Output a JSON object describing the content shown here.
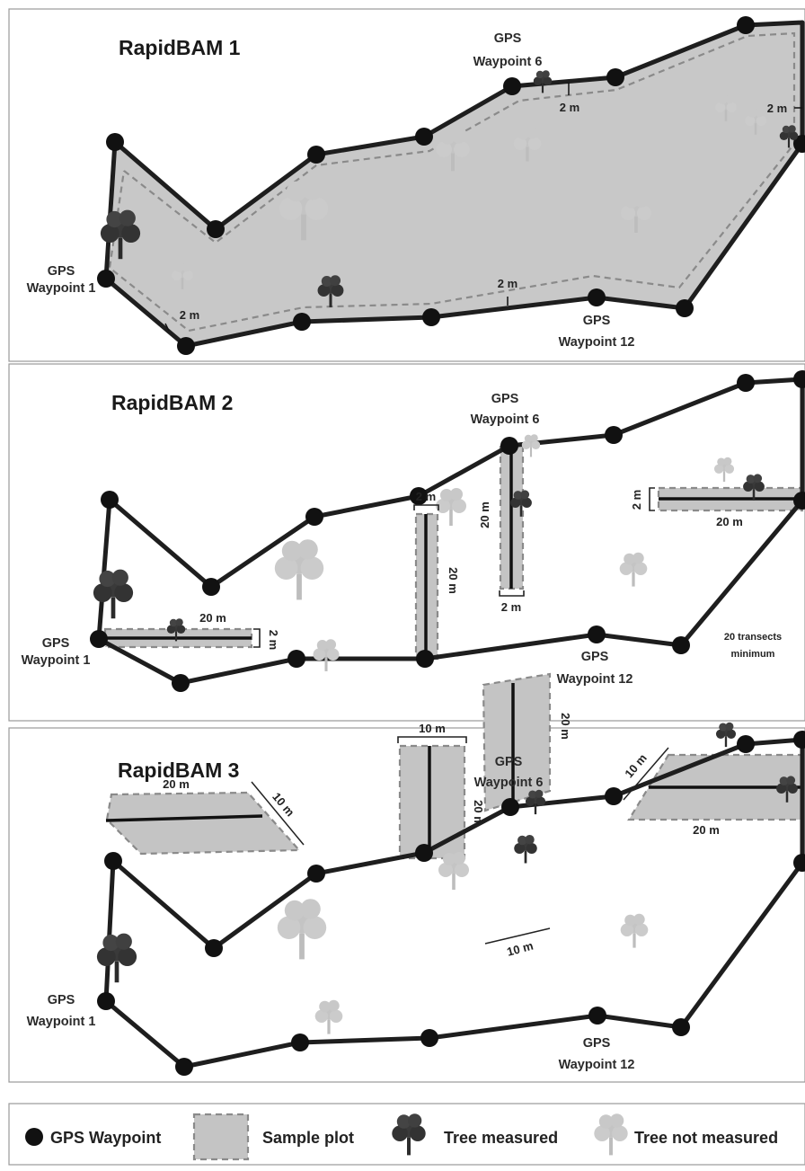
{
  "panels": [
    {
      "title": "RapidBAM 1",
      "labels": {
        "wp1_line1": "GPS",
        "wp1_line2": "Waypoint 1",
        "wp6_line1": "GPS",
        "wp6_line2": "Waypoint 6",
        "wp12_line1": "GPS",
        "wp12_line2": "Waypoint 12"
      },
      "dims": [
        "2 m",
        "2 m",
        "2 m",
        "2 m"
      ]
    },
    {
      "title": "RapidBAM 2",
      "labels": {
        "wp1_line1": "GPS",
        "wp1_line2": "Waypoint 1",
        "wp6_line1": "GPS",
        "wp6_line2": "Waypoint 6",
        "wp12_line1": "GPS",
        "wp12_line2": "Waypoint 12"
      },
      "dims": [
        "20 m",
        "2 m",
        "2 m",
        "20 m",
        "20 m",
        "2 m",
        "2 m",
        "20 m"
      ],
      "note_line1": "20 transects",
      "note_line2": "minimum"
    },
    {
      "title": "RapidBAM 3",
      "labels": {
        "wp1_line1": "GPS",
        "wp1_line2": "Waypoint 1",
        "wp6_line1": "GPS",
        "wp6_line2": "Waypoint 6",
        "wp12_line1": "GPS",
        "wp12_line2": "Waypoint 12"
      },
      "dims": [
        "20 m",
        "10 m",
        "10 m",
        "20 m",
        "20 m",
        "10 m",
        "10 m",
        "20 m"
      ]
    }
  ],
  "legend": {
    "waypoint": "GPS Waypoint",
    "plot": "Sample plot",
    "measured": "Tree measured",
    "not_measured": "Tree not measured"
  },
  "colors": {
    "boundary": "#1e1e1e",
    "plot_fill": "#c4c4c4",
    "tree_measured": "#3a3a3a",
    "tree_not_measured": "#bdbdbd"
  }
}
